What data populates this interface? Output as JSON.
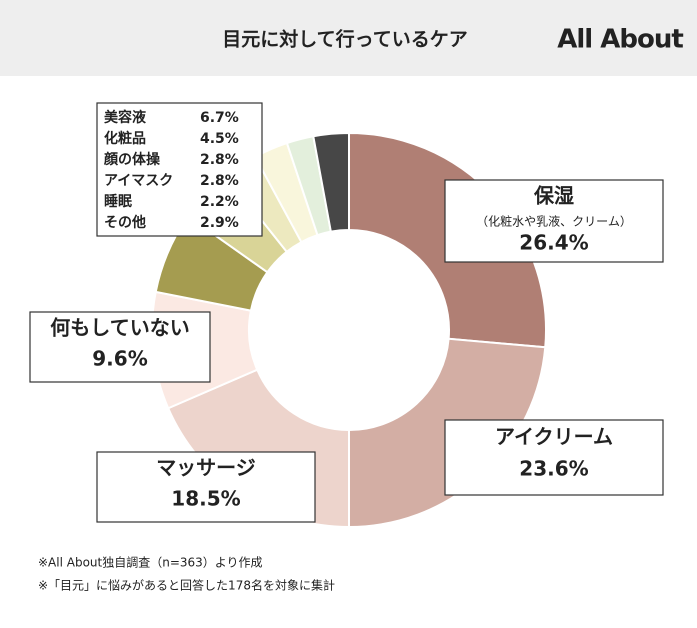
{
  "chart_data": {
    "type": "pie",
    "title": "目元に対して行っているケア",
    "logo": "All About",
    "categories": [
      "保湿",
      "アイクリーム",
      "マッサージ",
      "何もしていない",
      "美容液",
      "化粧品",
      "顔の体操",
      "アイマスク",
      "睡眠",
      "その他"
    ],
    "values": [
      26.4,
      23.6,
      18.5,
      9.6,
      6.7,
      4.5,
      2.8,
      2.8,
      2.2,
      2.9
    ],
    "value_labels": [
      "26.4%",
      "23.6%",
      "18.5%",
      "9.6%",
      "6.7%",
      "4.5%",
      "2.8%",
      "2.8%",
      "2.2%",
      "2.9%"
    ],
    "colors": [
      "#b07f74",
      "#d3aea4",
      "#edd4cc",
      "#fbe9e3",
      "#a59c50",
      "#d9d497",
      "#ede9bf",
      "#f9f6dc",
      "#e3efdc",
      "#474747"
    ],
    "annotation": "（化粧水や乳液、クリーム）",
    "notes": [
      "※All About独自調査（n=363）より作成",
      "※「目元」に悩みがあると回答した178名を対象に集計"
    ]
  }
}
